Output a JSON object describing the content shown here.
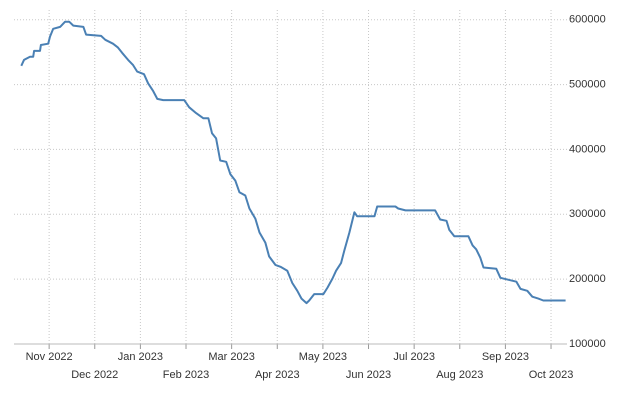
{
  "chart_data": {
    "type": "line",
    "color": "#4a80b4",
    "grid": true,
    "x": [
      -0.61,
      -0.55,
      -0.42,
      -0.35,
      -0.33,
      -0.2,
      -0.18,
      -0.02,
      0.02,
      0.09,
      0.24,
      0.35,
      0.44,
      0.53,
      0.75,
      0.81,
      1.14,
      1.23,
      1.4,
      1.51,
      1.6,
      1.73,
      1.84,
      1.93,
      2.08,
      2.17,
      2.28,
      2.37,
      2.5,
      2.96,
      3.07,
      3.22,
      3.38,
      3.49,
      3.57,
      3.66,
      3.75,
      3.88,
      3.97,
      4.08,
      4.17,
      4.3,
      4.39,
      4.52,
      4.61,
      4.74,
      4.82,
      4.96,
      5.07,
      5.22,
      5.33,
      5.44,
      5.53,
      5.64,
      5.7,
      5.81,
      6.01,
      6.1,
      6.21,
      6.29,
      6.4,
      6.47,
      6.58,
      6.69,
      6.75,
      7.13,
      7.19,
      7.59,
      7.65,
      7.81,
      8.46,
      8.57,
      8.71,
      8.77,
      8.88,
      9.19,
      9.28,
      9.36,
      9.45,
      9.52,
      9.8,
      9.89,
      10.07,
      10.24,
      10.33,
      10.48,
      10.59,
      10.72,
      10.83,
      11.32
    ],
    "values": [
      529000,
      538000,
      543000,
      543000,
      552000,
      552000,
      561000,
      563000,
      574000,
      586000,
      589000,
      597000,
      597000,
      591000,
      589000,
      577000,
      575000,
      569000,
      563000,
      557000,
      549000,
      538000,
      530000,
      520000,
      516000,
      502000,
      490000,
      478000,
      476000,
      476000,
      465000,
      456000,
      448000,
      448000,
      425000,
      417000,
      383000,
      381000,
      362000,
      352000,
      334000,
      329000,
      309000,
      293000,
      272000,
      256000,
      235000,
      222000,
      219000,
      213000,
      194000,
      182000,
      170000,
      163000,
      167000,
      177000,
      177000,
      187000,
      201000,
      213000,
      225000,
      244000,
      272000,
      303000,
      297000,
      297000,
      312000,
      312000,
      309000,
      306000,
      306000,
      292000,
      290000,
      276000,
      266000,
      266000,
      252000,
      246000,
      233000,
      218000,
      216000,
      202000,
      199000,
      196000,
      185000,
      182000,
      173000,
      170000,
      167000,
      167000
    ],
    "xlim": [
      -0.77,
      11.35
    ],
    "xticks": [
      {
        "value": 0,
        "label": "Nov 2022"
      },
      {
        "value": 1,
        "label": "Dec 2022"
      },
      {
        "value": 2,
        "label": "Jan 2023"
      },
      {
        "value": 3,
        "label": "Feb 2023"
      },
      {
        "value": 4,
        "label": "Mar 2023"
      },
      {
        "value": 5,
        "label": "Apr 2023"
      },
      {
        "value": 6,
        "label": "May 2023"
      },
      {
        "value": 7,
        "label": "Jun 2023"
      },
      {
        "value": 8,
        "label": "Jul 2023"
      },
      {
        "value": 9,
        "label": "Aug 2023"
      },
      {
        "value": 10,
        "label": "Sep 2023"
      },
      {
        "value": 11,
        "label": "Oct 2023"
      }
    ],
    "ylim": [
      100000,
      615000
    ],
    "yticks": [
      100000,
      200000,
      300000,
      400000,
      500000,
      600000
    ]
  }
}
